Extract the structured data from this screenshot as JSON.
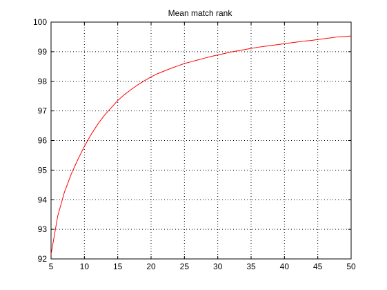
{
  "chart_data": {
    "type": "line",
    "title": "Mean match rank",
    "xlabel": "",
    "ylabel": "",
    "xlim": [
      5,
      50
    ],
    "ylim": [
      92,
      100
    ],
    "xticks": [
      5,
      10,
      15,
      20,
      25,
      30,
      35,
      40,
      45,
      50
    ],
    "yticks": [
      92,
      93,
      94,
      95,
      96,
      97,
      98,
      99,
      100
    ],
    "grid": true,
    "legend": "none",
    "series": [
      {
        "color": "#ff0000",
        "x": [
          5,
          6,
          7,
          8,
          9,
          10,
          11,
          12,
          13,
          14,
          15,
          16,
          17,
          18,
          19,
          20,
          21,
          22,
          23,
          24,
          25,
          26,
          27,
          28,
          29,
          30,
          31,
          32,
          33,
          34,
          35,
          36,
          37,
          38,
          39,
          40,
          41,
          42,
          43,
          44,
          45,
          46,
          47,
          48,
          49,
          50
        ],
        "y": [
          92.15,
          93.45,
          94.25,
          94.85,
          95.35,
          95.8,
          96.2,
          96.55,
          96.85,
          97.1,
          97.35,
          97.55,
          97.72,
          97.88,
          98.02,
          98.15,
          98.26,
          98.35,
          98.44,
          98.52,
          98.6,
          98.66,
          98.72,
          98.78,
          98.84,
          98.89,
          98.94,
          98.99,
          99.03,
          99.07,
          99.11,
          99.15,
          99.18,
          99.21,
          99.24,
          99.27,
          99.3,
          99.33,
          99.36,
          99.38,
          99.41,
          99.44,
          99.47,
          99.5,
          99.51,
          99.53
        ]
      }
    ]
  },
  "colors": {
    "axis": "#000000",
    "grid": "#000000",
    "line": "#ff0000",
    "background": "#ffffff"
  }
}
